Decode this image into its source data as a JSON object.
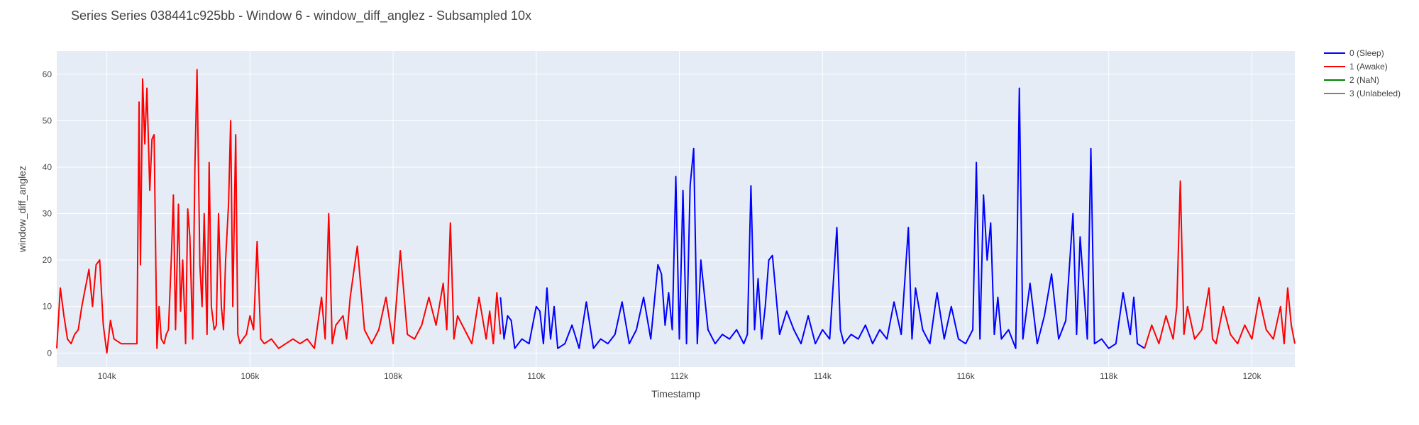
{
  "chart_data": {
    "type": "line",
    "title": "Series Series 038441c925bb - Window 6 - window_diff_anglez - Subsampled 10x",
    "xlabel": "Timestamp",
    "ylabel": "window_diff_anglez",
    "xlim": [
      103300,
      120600
    ],
    "ylim": [
      -3,
      65
    ],
    "x_ticks": [
      104000,
      106000,
      108000,
      110000,
      112000,
      114000,
      116000,
      118000,
      120000
    ],
    "x_tick_labels": [
      "104k",
      "106k",
      "108k",
      "110k",
      "112k",
      "114k",
      "116k",
      "118k",
      "120k"
    ],
    "y_ticks": [
      0,
      10,
      20,
      30,
      40,
      50,
      60
    ],
    "y_tick_labels": [
      "0",
      "10",
      "20",
      "30",
      "40",
      "50",
      "60"
    ],
    "grid": true,
    "plot_background": "#E5ECF6",
    "legend_position": "top-right-outside",
    "legend": [
      {
        "label": "0 (Sleep)",
        "color": "#0000FF"
      },
      {
        "label": "1 (Awake)",
        "color": "#FF0000"
      },
      {
        "label": "2 (NaN)",
        "color": "#008000"
      },
      {
        "label": "3 (Unlabeled)",
        "color": "#808080"
      }
    ],
    "series": [
      {
        "name": "1 (Awake)",
        "color": "#FF0000",
        "x": [
          103300,
          103350,
          103400,
          103450,
          103500,
          103550,
          103600,
          103650,
          103700,
          103750,
          103800,
          103850,
          103900,
          103950,
          104000,
          104050,
          104100,
          104200,
          104300,
          104350,
          104400,
          104420,
          104450,
          104470,
          104500,
          104530,
          104560,
          104600,
          104630,
          104660,
          104700,
          104730,
          104760,
          104800,
          104830,
          104860,
          104900,
          104930,
          104960,
          105000,
          105030,
          105060,
          105100,
          105130,
          105160,
          105200,
          105230,
          105260,
          105300,
          105330,
          105360,
          105400,
          105430,
          105460,
          105500,
          105530,
          105560,
          105600,
          105630,
          105660,
          105700,
          105730,
          105760,
          105800,
          105830,
          105860,
          105900,
          105950,
          106000,
          106050,
          106100,
          106150,
          106200,
          106300,
          106400,
          106500,
          106600,
          106700,
          106800,
          106900,
          107000,
          107050,
          107100,
          107150,
          107200,
          107300,
          107350,
          107400,
          107500,
          107600,
          107700,
          107800,
          107900,
          108000,
          108100,
          108200,
          108300,
          108400,
          108500,
          108600,
          108700,
          108750,
          108800,
          108850,
          108900,
          109000,
          109100,
          109200,
          109300,
          109350,
          109400,
          109450,
          109500
        ],
        "y": [
          1,
          14,
          8,
          3,
          2,
          4,
          5,
          10,
          14,
          18,
          10,
          19,
          20,
          6,
          0,
          7,
          3,
          2,
          2,
          2,
          2,
          2,
          54,
          19,
          59,
          45,
          57,
          35,
          46,
          47,
          1,
          10,
          3,
          2,
          4,
          5,
          20,
          34,
          5,
          32,
          9,
          20,
          2,
          31,
          25,
          3,
          40,
          61,
          19,
          10,
          30,
          4,
          41,
          10,
          5,
          6,
          30,
          10,
          5,
          20,
          32,
          50,
          10,
          47,
          4,
          2,
          3,
          4,
          8,
          5,
          24,
          3,
          2,
          3,
          1,
          2,
          3,
          2,
          3,
          1,
          12,
          3,
          30,
          2,
          6,
          8,
          3,
          12,
          23,
          5,
          2,
          5,
          12,
          2,
          22,
          4,
          3,
          6,
          12,
          6,
          15,
          5,
          28,
          3,
          8,
          5,
          2,
          12,
          3,
          9,
          2,
          13,
          4
        ]
      },
      {
        "name": "0 (Sleep)",
        "color": "#0000FF",
        "x": [
          109500,
          109550,
          109600,
          109650,
          109700,
          109800,
          109900,
          110000,
          110050,
          110100,
          110150,
          110200,
          110250,
          110300,
          110400,
          110500,
          110600,
          110700,
          110800,
          110900,
          111000,
          111100,
          111200,
          111300,
          111400,
          111500,
          111600,
          111700,
          111750,
          111800,
          111850,
          111900,
          111950,
          112000,
          112050,
          112100,
          112150,
          112200,
          112250,
          112300,
          112400,
          112500,
          112600,
          112700,
          112800,
          112900,
          112950,
          113000,
          113050,
          113100,
          113150,
          113200,
          113250,
          113300,
          113400,
          113500,
          113600,
          113700,
          113800,
          113900,
          114000,
          114100,
          114200,
          114250,
          114300,
          114400,
          114500,
          114600,
          114700,
          114800,
          114900,
          115000,
          115100,
          115200,
          115250,
          115300,
          115400,
          115500,
          115600,
          115700,
          115800,
          115900,
          116000,
          116100,
          116150,
          116200,
          116250,
          116300,
          116350,
          116400,
          116450,
          116500,
          116600,
          116700,
          116750,
          116800,
          116900,
          117000,
          117100,
          117200,
          117300,
          117400,
          117500,
          117550,
          117600,
          117700,
          117750,
          117800,
          117900,
          118000,
          118100,
          118200,
          118300,
          118350,
          118400,
          118500
        ],
        "y": [
          12,
          3,
          8,
          7,
          1,
          3,
          2,
          10,
          9,
          2,
          14,
          3,
          10,
          1,
          2,
          6,
          1,
          11,
          1,
          3,
          2,
          4,
          11,
          2,
          5,
          12,
          3,
          19,
          17,
          6,
          13,
          5,
          38,
          3,
          35,
          2,
          36,
          44,
          2,
          20,
          5,
          2,
          4,
          3,
          5,
          2,
          4,
          36,
          5,
          16,
          3,
          10,
          20,
          21,
          4,
          9,
          5,
          2,
          8,
          2,
          5,
          3,
          27,
          5,
          2,
          4,
          3,
          6,
          2,
          5,
          3,
          11,
          4,
          27,
          3,
          14,
          5,
          2,
          13,
          3,
          10,
          3,
          2,
          5,
          41,
          3,
          34,
          20,
          28,
          4,
          12,
          3,
          5,
          1,
          57,
          3,
          15,
          2,
          8,
          17,
          3,
          7,
          30,
          4,
          25,
          3,
          44,
          2,
          3,
          1,
          2,
          13,
          4,
          12,
          2,
          1
        ]
      },
      {
        "name": "1 (Awake)",
        "color": "#FF0000",
        "x": [
          118500,
          118600,
          118700,
          118800,
          118900,
          118950,
          119000,
          119050,
          119100,
          119200,
          119300,
          119400,
          119450,
          119500,
          119600,
          119700,
          119800,
          119900,
          120000,
          120100,
          120200,
          120300,
          120400,
          120450,
          120500,
          120550,
          120600
        ],
        "y": [
          1,
          6,
          2,
          8,
          3,
          10,
          37,
          4,
          10,
          3,
          5,
          14,
          3,
          2,
          10,
          4,
          2,
          6,
          3,
          12,
          5,
          3,
          10,
          2,
          14,
          6,
          2
        ]
      }
    ]
  }
}
